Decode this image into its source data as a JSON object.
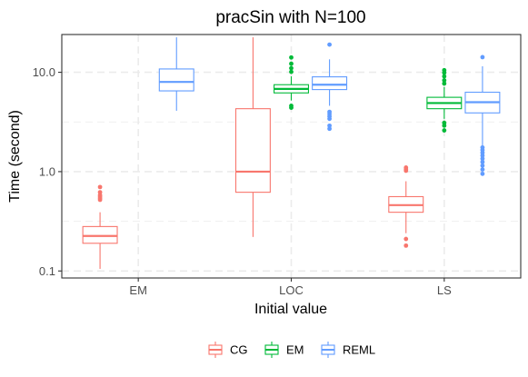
{
  "chart_data": {
    "type": "boxplot",
    "title": "pracSin with N=100",
    "xlabel": "Initial value",
    "ylabel": "Time (second)",
    "y_scale": "log10",
    "ylim": [
      0.085,
      24
    ],
    "y_ticks": [
      {
        "value": 0.1,
        "label": "0.1"
      },
      {
        "value": 1,
        "label": "1.0"
      },
      {
        "value": 10,
        "label": "10.0"
      }
    ],
    "categories": [
      "EM",
      "LOC",
      "LS"
    ],
    "grid": true,
    "legend": {
      "position": "bottom",
      "entries": [
        "CG",
        "EM",
        "REML"
      ]
    },
    "series": [
      {
        "name": "CG",
        "color": "#F8766D",
        "boxes": [
          {
            "category": "EM",
            "whisker_low": 0.105,
            "q1": 0.19,
            "median": 0.225,
            "q3": 0.28,
            "whisker_high": 0.39,
            "outliers": [
              0.52,
              0.54,
              0.56,
              0.58,
              0.62,
              0.7
            ]
          },
          {
            "category": "LOC",
            "whisker_low": 0.22,
            "q1": 0.62,
            "median": 1.0,
            "q3": 4.3,
            "whisker_high": 22.5,
            "outliers": []
          },
          {
            "category": "LS",
            "whisker_low": 0.24,
            "q1": 0.39,
            "median": 0.46,
            "q3": 0.56,
            "whisker_high": 0.8,
            "outliers": [
              0.18,
              0.21,
              1.02,
              1.06,
              1.1
            ]
          }
        ]
      },
      {
        "name": "EM",
        "color": "#00BA38",
        "boxes": [
          {
            "category": "LOC",
            "whisker_low": 5.2,
            "q1": 6.2,
            "median": 6.8,
            "q3": 7.5,
            "whisker_high": 9.1,
            "outliers": [
              4.4,
              4.6,
              10.1,
              11.0,
              12.2,
              14.1
            ]
          },
          {
            "category": "LS",
            "whisker_low": 3.4,
            "q1": 4.3,
            "median": 4.9,
            "q3": 5.6,
            "whisker_high": 7.1,
            "outliers": [
              2.6,
              2.9,
              3.1,
              7.7,
              8.3,
              9.1,
              9.9,
              10.5
            ]
          }
        ]
      },
      {
        "name": "REML",
        "color": "#619CFF",
        "boxes": [
          {
            "category": "EM",
            "whisker_low": 4.1,
            "q1": 6.5,
            "median": 8.0,
            "q3": 10.8,
            "whisker_high": 22.5,
            "outliers": []
          },
          {
            "category": "LOC",
            "whisker_low": 4.6,
            "q1": 6.7,
            "median": 7.5,
            "q3": 9.0,
            "whisker_high": 13.5,
            "outliers": [
              2.7,
              2.9,
              3.4,
              3.6,
              3.8,
              4.0,
              19.0
            ]
          },
          {
            "category": "LS",
            "whisker_low": 1.8,
            "q1": 3.9,
            "median": 5.0,
            "q3": 6.3,
            "whisker_high": 11.5,
            "outliers": [
              0.95,
              1.05,
              1.15,
              1.25,
              1.35,
              1.45,
              1.55,
              1.65,
              1.75,
              14.2
            ]
          }
        ]
      }
    ]
  }
}
